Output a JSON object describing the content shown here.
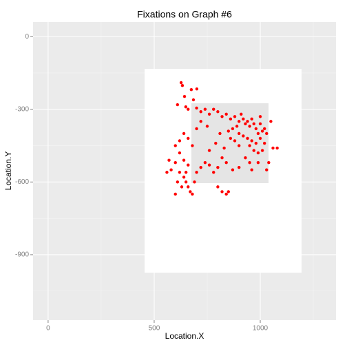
{
  "chart_data": {
    "type": "scatter",
    "title": "Fixations on Graph #6",
    "x_label": "Location.X",
    "y_label": "Location.Y",
    "color": "#ff0000",
    "x": [
      627,
      633,
      643,
      675,
      701,
      685,
      610,
      649,
      660,
      700,
      720,
      740,
      760,
      780,
      800,
      820,
      840,
      860,
      880,
      900,
      910,
      920,
      930,
      940,
      950,
      960,
      970,
      980,
      990,
      1000,
      1010,
      1020,
      1030,
      1000,
      890,
      870,
      850,
      900,
      920,
      940,
      960,
      980,
      900,
      880,
      860,
      950,
      970,
      990,
      1010,
      1080,
      1060,
      930,
      950,
      900,
      870,
      840,
      820,
      800,
      780,
      760,
      740,
      720,
      700,
      680,
      660,
      640,
      620,
      600,
      620,
      640,
      600,
      580,
      560,
      570,
      620,
      640,
      650,
      660,
      670,
      680,
      630,
      610,
      600,
      650,
      660,
      690,
      800,
      820,
      840,
      850,
      760,
      790,
      810,
      830,
      700,
      720,
      750,
      1040,
      1030,
      960,
      990,
      1020,
      1050,
      1000
    ],
    "y": [
      -190,
      -202,
      -247,
      -219,
      -216,
      -261,
      -281,
      -290,
      -300,
      -295,
      -310,
      -300,
      -320,
      -300,
      -310,
      -330,
      -320,
      -340,
      -330,
      -350,
      -320,
      -340,
      -360,
      -350,
      -370,
      -340,
      -360,
      -380,
      -400,
      -420,
      -390,
      -440,
      -400,
      -360,
      -370,
      -380,
      -390,
      -400,
      -410,
      -420,
      -430,
      -440,
      -450,
      -430,
      -420,
      -450,
      -470,
      -480,
      -470,
      -460,
      -460,
      -500,
      -520,
      -540,
      -550,
      -520,
      -500,
      -540,
      -560,
      -530,
      -520,
      -540,
      -560,
      -450,
      -420,
      -400,
      -430,
      -450,
      -480,
      -510,
      -520,
      -550,
      -560,
      -510,
      -560,
      -580,
      -600,
      -620,
      -640,
      -650,
      -620,
      -600,
      -650,
      -560,
      -530,
      -600,
      -620,
      -640,
      -650,
      -640,
      -470,
      -440,
      -400,
      -460,
      -380,
      -350,
      -370,
      -520,
      -550,
      -550,
      -520,
      -380,
      -350,
      -330
    ],
    "xlim": [
      -71,
      1357
    ],
    "ylim": [
      -1170,
      60
    ],
    "xticks": [
      0,
      500,
      1000
    ],
    "yticks": [
      0,
      -300,
      -600,
      -900
    ],
    "grid": true
  }
}
